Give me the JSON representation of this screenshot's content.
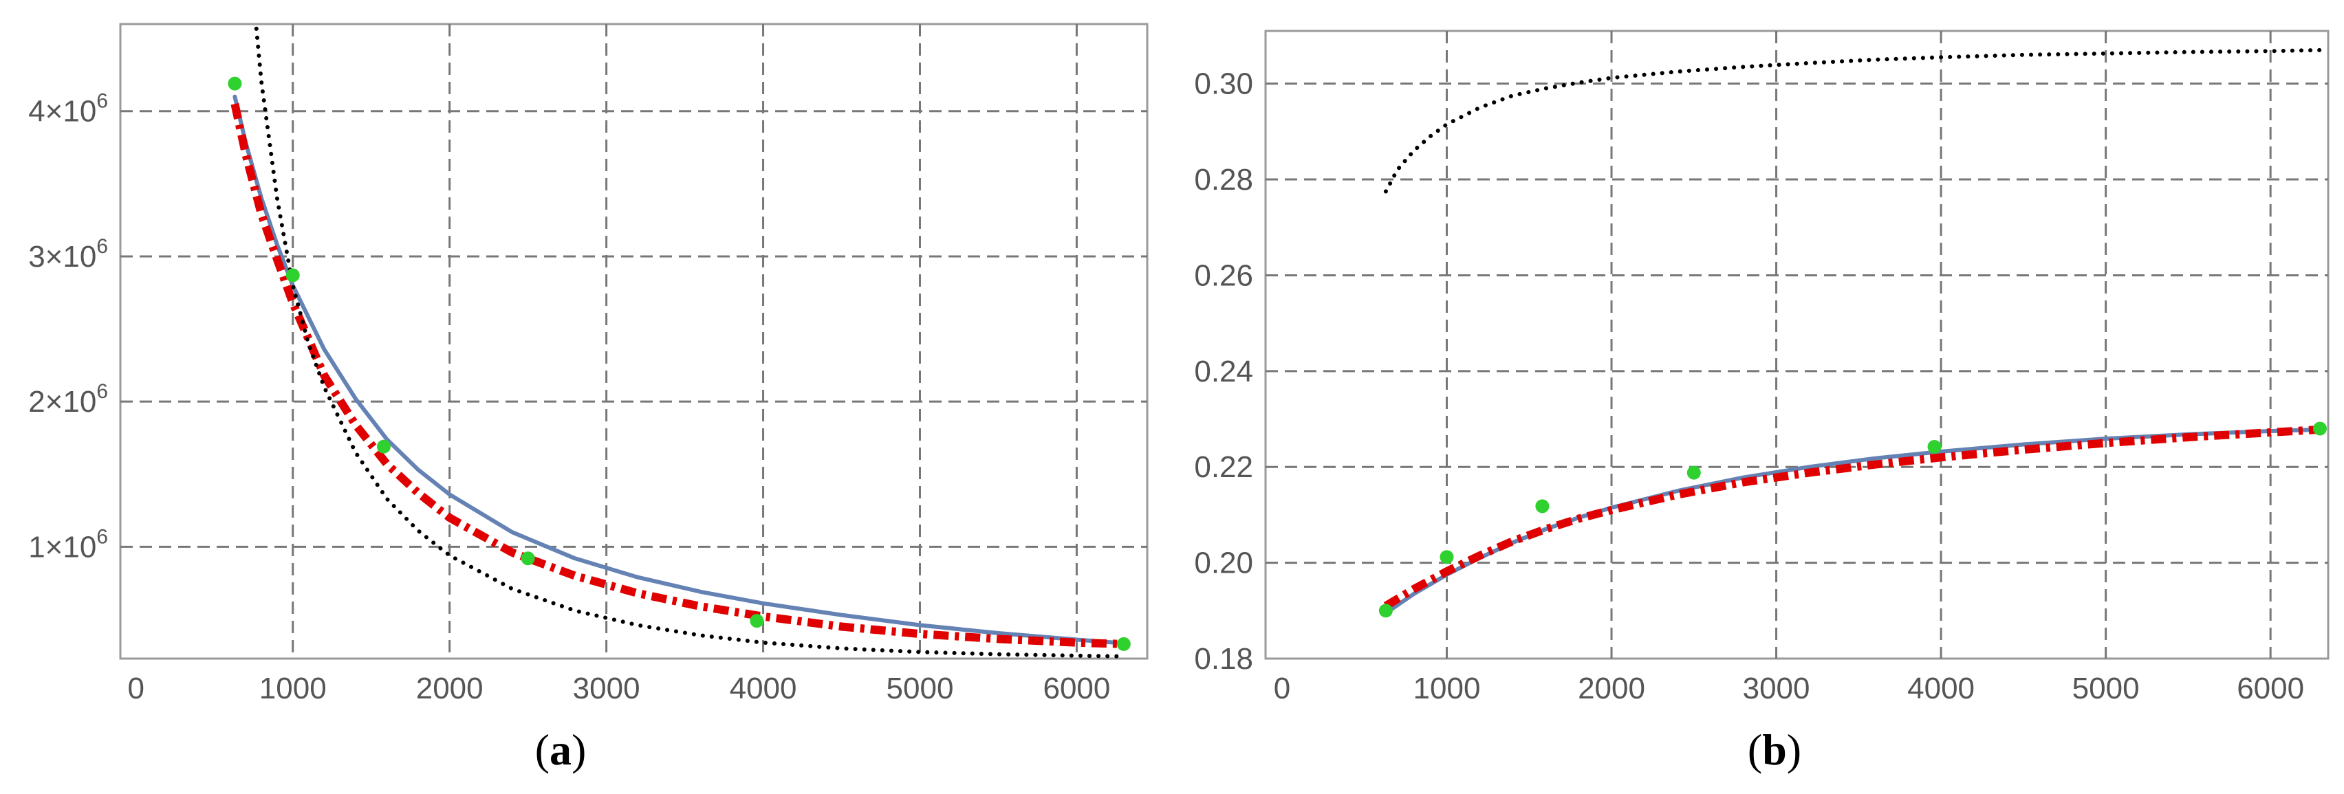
{
  "chart_data": [
    {
      "panel": "a",
      "caption": {
        "open": "(",
        "letter": "a",
        "close": ")"
      },
      "type": "line",
      "xlim": [
        -100,
        6450
      ],
      "ylim": [
        230000,
        4600000
      ],
      "xticks": [
        0,
        1000,
        2000,
        3000,
        4000,
        5000,
        6000
      ],
      "xtick_labels": [
        "0",
        "1000",
        "2000",
        "3000",
        "4000",
        "5000",
        "6000"
      ],
      "yticks": [
        1000000,
        2000000,
        3000000,
        4000000
      ],
      "ytick_labels": [
        {
          "base": "1×10",
          "exp": "6"
        },
        {
          "base": "2×10",
          "exp": "6"
        },
        {
          "base": "3×10",
          "exp": "6"
        },
        {
          "base": "4×10",
          "exp": "6"
        }
      ],
      "grid": true,
      "series": [
        {
          "style": "solid",
          "color": "#6482b4",
          "x": [
            630,
            700,
            800,
            900,
            1000,
            1200,
            1400,
            1600,
            1800,
            2000,
            2400,
            2800,
            3200,
            3600,
            4000,
            4500,
            5000,
            5500,
            6000,
            6300
          ],
          "y": [
            4100000,
            3780000,
            3400000,
            3080000,
            2800000,
            2360000,
            2020000,
            1740000,
            1530000,
            1360000,
            1100000,
            920000,
            790000,
            690000,
            610000,
            530000,
            460000,
            405000,
            360000,
            335000
          ]
        },
        {
          "style": "dashdot",
          "color": "#e00000",
          "x": [
            630,
            700,
            800,
            900,
            1000,
            1200,
            1400,
            1600,
            1800,
            2000,
            2400,
            2800,
            3200,
            3600,
            4000,
            4500,
            5000,
            5500,
            6000,
            6300
          ],
          "y": [
            4050000,
            3700000,
            3290000,
            2980000,
            2680000,
            2180000,
            1840000,
            1570000,
            1370000,
            1200000,
            960000,
            800000,
            680000,
            590000,
            520000,
            450000,
            400000,
            365000,
            340000,
            330000
          ]
        },
        {
          "style": "dotted",
          "color": "#000000",
          "x": [
            730,
            800,
            900,
            1000,
            1100,
            1200,
            1400,
            1600,
            1800,
            2000,
            2400,
            2800,
            3200,
            3600,
            4000,
            4500,
            5000,
            5500,
            6000,
            6300
          ],
          "y": [
            5000000,
            4200000,
            3400000,
            2800000,
            2400000,
            2100000,
            1650000,
            1330000,
            1110000,
            940000,
            710000,
            560000,
            460000,
            390000,
            340000,
            300000,
            275000,
            260000,
            250000,
            245000
          ]
        },
        {
          "style": "points",
          "color": "#2fd12f",
          "x": [
            630,
            1000,
            1580,
            2500,
            3960,
            6300
          ],
          "y": [
            4190000,
            2870000,
            1690000,
            920000,
            490000,
            330000
          ]
        }
      ]
    },
    {
      "panel": "b",
      "caption": {
        "open": "(",
        "letter": "b",
        "close": ")"
      },
      "type": "line",
      "xlim": [
        -100,
        6350
      ],
      "ylim": [
        0.18,
        0.311
      ],
      "xticks": [
        0,
        1000,
        2000,
        3000,
        4000,
        5000,
        6000
      ],
      "xtick_labels": [
        "0",
        "1000",
        "2000",
        "3000",
        "4000",
        "5000",
        "6000"
      ],
      "yticks": [
        0.18,
        0.2,
        0.22,
        0.24,
        0.26,
        0.28,
        0.3
      ],
      "ytick_labels": [
        "0.18",
        "0.20",
        "0.22",
        "0.24",
        "0.26",
        "0.28",
        "0.30"
      ],
      "grid": true,
      "series": [
        {
          "style": "solid",
          "color": "#6482b4",
          "x": [
            630,
            800,
            1000,
            1200,
            1400,
            1600,
            1800,
            2000,
            2400,
            2800,
            3200,
            3600,
            4000,
            4500,
            5000,
            5500,
            6000,
            6300
          ],
          "y": [
            0.1895,
            0.1935,
            0.1975,
            0.201,
            0.2042,
            0.207,
            0.2094,
            0.2115,
            0.215,
            0.2178,
            0.22,
            0.2218,
            0.2232,
            0.2247,
            0.2259,
            0.2268,
            0.2275,
            0.2278
          ]
        },
        {
          "style": "dashdot",
          "color": "#e00000",
          "x": [
            630,
            800,
            1000,
            1200,
            1400,
            1600,
            1800,
            2000,
            2400,
            2800,
            3200,
            3600,
            4000,
            4500,
            5000,
            5500,
            6000,
            6300
          ],
          "y": [
            0.191,
            0.1945,
            0.1982,
            0.2015,
            0.2045,
            0.207,
            0.2092,
            0.211,
            0.2142,
            0.2168,
            0.2188,
            0.2205,
            0.222,
            0.2236,
            0.225,
            0.2262,
            0.2272,
            0.2278
          ]
        },
        {
          "style": "dotted",
          "color": "#000000",
          "x": [
            630,
            700,
            800,
            900,
            1000,
            1200,
            1400,
            1600,
            1800,
            2000,
            2400,
            2800,
            3200,
            3600,
            4000,
            4500,
            5000,
            5500,
            6000,
            6300
          ],
          "y": [
            0.2775,
            0.282,
            0.286,
            0.289,
            0.2915,
            0.295,
            0.2975,
            0.299,
            0.3002,
            0.3012,
            0.3025,
            0.3035,
            0.3043,
            0.305,
            0.3055,
            0.306,
            0.3063,
            0.3066,
            0.3068,
            0.307
          ]
        },
        {
          "style": "points",
          "color": "#2fd12f",
          "x": [
            630,
            1000,
            1580,
            2500,
            3960,
            6300
          ],
          "y": [
            0.19,
            0.2012,
            0.2118,
            0.2188,
            0.2242,
            0.228
          ]
        }
      ]
    }
  ]
}
